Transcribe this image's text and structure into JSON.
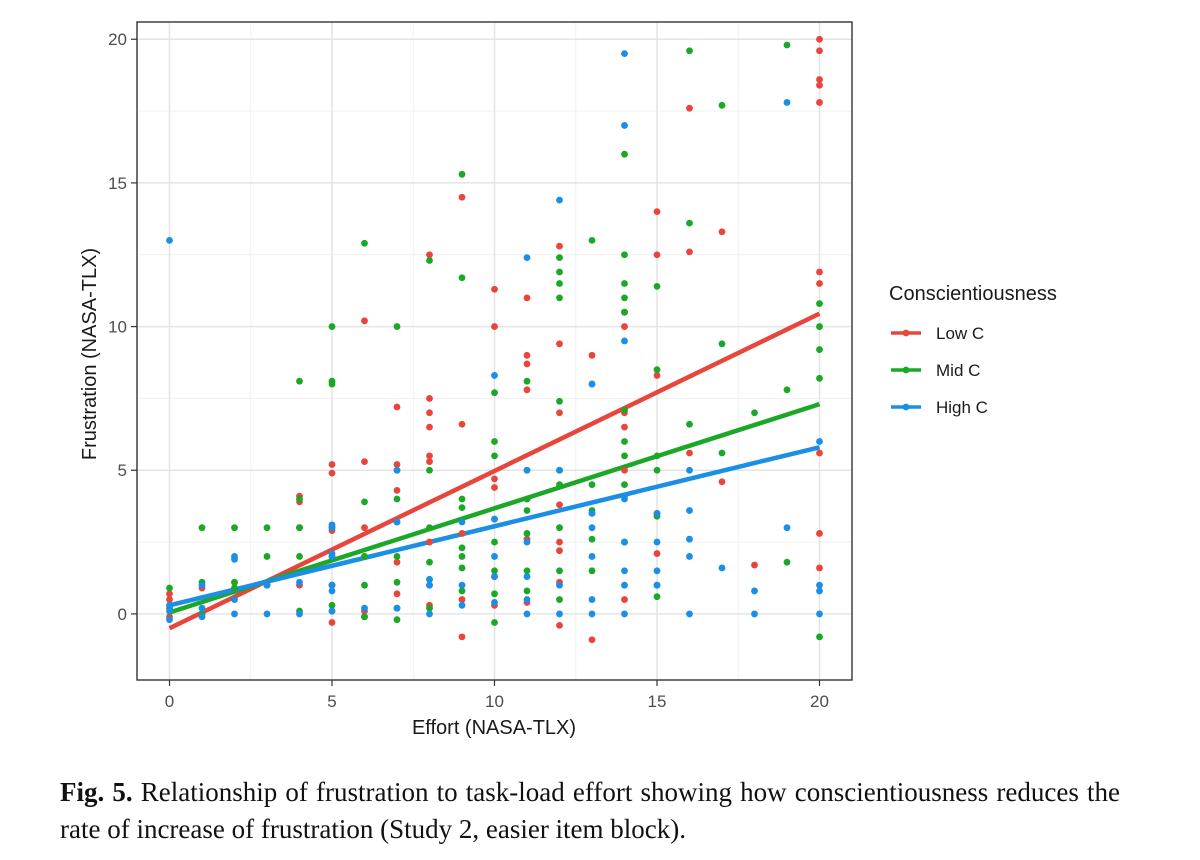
{
  "chart_data": {
    "type": "scatter",
    "title": "",
    "xlabel": "Effort (NASA-TLX)",
    "ylabel": "Frustration (NASA-TLX)",
    "xlim": [
      -1,
      21
    ],
    "ylim": [
      -2.3,
      20.6
    ],
    "x_ticks": [
      0,
      5,
      10,
      15,
      20
    ],
    "y_ticks": [
      0,
      5,
      10,
      15,
      20
    ],
    "x_minor_ticks": [
      2.5,
      7.5,
      12.5,
      17.5
    ],
    "y_minor_ticks": [
      2.5,
      7.5,
      12.5,
      17.5
    ],
    "grid": true,
    "legend": {
      "title": "Conscientiousness",
      "position": "right",
      "entries": [
        "Low C",
        "Mid C",
        "High C"
      ]
    },
    "series": [
      {
        "name": "Low C",
        "color": "#e8453c",
        "fit_line": {
          "x": [
            0,
            20
          ],
          "y": [
            -0.5,
            10.45
          ]
        },
        "points": [
          [
            0,
            0.7
          ],
          [
            0,
            0.5
          ],
          [
            0,
            -0.1
          ],
          [
            1,
            0
          ],
          [
            1,
            0.9
          ],
          [
            2,
            1.1
          ],
          [
            2,
            0.9
          ],
          [
            3,
            1
          ],
          [
            4,
            4.1
          ],
          [
            4,
            3.9
          ],
          [
            4,
            3
          ],
          [
            4,
            1
          ],
          [
            5,
            5.2
          ],
          [
            5,
            4.9
          ],
          [
            5,
            2.9
          ],
          [
            5,
            1
          ],
          [
            5,
            0.1
          ],
          [
            5,
            -0.3
          ],
          [
            6,
            10.2
          ],
          [
            6,
            5.3
          ],
          [
            6,
            3
          ],
          [
            6,
            2
          ],
          [
            6,
            0.1
          ],
          [
            6,
            -0.1
          ],
          [
            7,
            7.2
          ],
          [
            7,
            5.2
          ],
          [
            7,
            4.3
          ],
          [
            7,
            1.8
          ],
          [
            7,
            0.7
          ],
          [
            8,
            12.5
          ],
          [
            8,
            7.5
          ],
          [
            8,
            7
          ],
          [
            8,
            6.5
          ],
          [
            8,
            5.5
          ],
          [
            8,
            5.3
          ],
          [
            8,
            2.5
          ],
          [
            8,
            1
          ],
          [
            8,
            0.3
          ],
          [
            9,
            14.5
          ],
          [
            9,
            6.6
          ],
          [
            9,
            2.8
          ],
          [
            9,
            0.5
          ],
          [
            9,
            -0.8
          ],
          [
            10,
            11.3
          ],
          [
            10,
            10
          ],
          [
            10,
            4.7
          ],
          [
            10,
            4.4
          ],
          [
            10,
            1.3
          ],
          [
            10,
            0.3
          ],
          [
            11,
            11
          ],
          [
            11,
            9
          ],
          [
            11,
            8.7
          ],
          [
            11,
            7.8
          ],
          [
            11,
            4
          ],
          [
            11,
            2.6
          ],
          [
            11,
            0.4
          ],
          [
            12,
            12.8
          ],
          [
            12,
            9.4
          ],
          [
            12,
            7
          ],
          [
            12,
            3.8
          ],
          [
            12,
            2.5
          ],
          [
            12,
            2.2
          ],
          [
            12,
            1.1
          ],
          [
            12,
            -0.4
          ],
          [
            13,
            9
          ],
          [
            13,
            8
          ],
          [
            13,
            3.5
          ],
          [
            13,
            -0.9
          ],
          [
            14,
            10.5
          ],
          [
            14,
            10
          ],
          [
            14,
            7
          ],
          [
            14,
            6.5
          ],
          [
            14,
            5
          ],
          [
            14,
            0.5
          ],
          [
            15,
            14
          ],
          [
            15,
            12.5
          ],
          [
            15,
            8.3
          ],
          [
            15,
            3.5
          ],
          [
            15,
            2.1
          ],
          [
            16,
            17.6
          ],
          [
            16,
            12.6
          ],
          [
            16,
            5.6
          ],
          [
            17,
            13.3
          ],
          [
            17,
            4.6
          ],
          [
            18,
            1.7
          ],
          [
            20,
            20
          ],
          [
            20,
            19.6
          ],
          [
            20,
            18.6
          ],
          [
            20,
            18.4
          ],
          [
            20,
            17.8
          ],
          [
            20,
            11.9
          ],
          [
            20,
            11.5
          ],
          [
            20,
            5.6
          ],
          [
            20,
            2.8
          ],
          [
            20,
            1.6
          ]
        ]
      },
      {
        "name": "Mid C",
        "color": "#1aa826",
        "fit_line": {
          "x": [
            0,
            20
          ],
          "y": [
            0.05,
            7.3
          ]
        },
        "points": [
          [
            0,
            0.9
          ],
          [
            0,
            0.2
          ],
          [
            1,
            3
          ],
          [
            1,
            1.1
          ],
          [
            1,
            0
          ],
          [
            2,
            3
          ],
          [
            2,
            1.1
          ],
          [
            2,
            0.9
          ],
          [
            3,
            3
          ],
          [
            3,
            2
          ],
          [
            3,
            1
          ],
          [
            4,
            8.1
          ],
          [
            4,
            4
          ],
          [
            4,
            3
          ],
          [
            4,
            2
          ],
          [
            4,
            0.1
          ],
          [
            5,
            10
          ],
          [
            5,
            8.1
          ],
          [
            5,
            8
          ],
          [
            5,
            3
          ],
          [
            5,
            2
          ],
          [
            5,
            1
          ],
          [
            5,
            0.3
          ],
          [
            6,
            12.9
          ],
          [
            6,
            3.9
          ],
          [
            6,
            2
          ],
          [
            6,
            1
          ],
          [
            6,
            -0.1
          ],
          [
            7,
            10
          ],
          [
            7,
            5
          ],
          [
            7,
            4
          ],
          [
            7,
            3.2
          ],
          [
            7,
            2
          ],
          [
            7,
            1.1
          ],
          [
            7,
            0.2
          ],
          [
            7,
            -0.2
          ],
          [
            8,
            12.3
          ],
          [
            8,
            5
          ],
          [
            8,
            3
          ],
          [
            8,
            1.8
          ],
          [
            8,
            1.2
          ],
          [
            8,
            0.2
          ],
          [
            9,
            15.3
          ],
          [
            9,
            11.7
          ],
          [
            9,
            4
          ],
          [
            9,
            3.7
          ],
          [
            9,
            2.3
          ],
          [
            9,
            2
          ],
          [
            9,
            1.6
          ],
          [
            9,
            0.8
          ],
          [
            10,
            7.7
          ],
          [
            10,
            6
          ],
          [
            10,
            5.5
          ],
          [
            10,
            3.3
          ],
          [
            10,
            2.5
          ],
          [
            10,
            1.5
          ],
          [
            10,
            0.7
          ],
          [
            10,
            -0.3
          ],
          [
            11,
            8.1
          ],
          [
            11,
            5
          ],
          [
            11,
            4
          ],
          [
            11,
            3.6
          ],
          [
            11,
            2.8
          ],
          [
            11,
            1.5
          ],
          [
            11,
            0.8
          ],
          [
            12,
            12.4
          ],
          [
            12,
            11.9
          ],
          [
            12,
            11.5
          ],
          [
            12,
            11
          ],
          [
            12,
            7.4
          ],
          [
            12,
            5
          ],
          [
            12,
            4.5
          ],
          [
            12,
            3
          ],
          [
            12,
            1.5
          ],
          [
            12,
            0.5
          ],
          [
            13,
            13
          ],
          [
            13,
            4.5
          ],
          [
            13,
            3.6
          ],
          [
            13,
            2.6
          ],
          [
            13,
            1.5
          ],
          [
            14,
            16
          ],
          [
            14,
            12.5
          ],
          [
            14,
            11.5
          ],
          [
            14,
            11
          ],
          [
            14,
            10.5
          ],
          [
            14,
            7.1
          ],
          [
            14,
            6
          ],
          [
            14,
            5.5
          ],
          [
            14,
            4.5
          ],
          [
            14,
            2.5
          ],
          [
            15,
            11.4
          ],
          [
            15,
            8.5
          ],
          [
            15,
            5.5
          ],
          [
            15,
            5
          ],
          [
            15,
            3.4
          ],
          [
            15,
            1
          ],
          [
            15,
            0.6
          ],
          [
            16,
            19.6
          ],
          [
            16,
            13.6
          ],
          [
            16,
            6.6
          ],
          [
            17,
            17.7
          ],
          [
            17,
            9.4
          ],
          [
            17,
            5.6
          ],
          [
            18,
            7
          ],
          [
            19,
            19.8
          ],
          [
            19,
            7.8
          ],
          [
            19,
            1.8
          ],
          [
            20,
            10.8
          ],
          [
            20,
            10
          ],
          [
            20,
            9.2
          ],
          [
            20,
            8.2
          ],
          [
            20,
            -0.8
          ]
        ]
      },
      {
        "name": "High C",
        "color": "#1b8ee6",
        "fit_line": {
          "x": [
            0,
            20
          ],
          "y": [
            0.3,
            5.8
          ]
        },
        "points": [
          [
            0,
            13
          ],
          [
            0,
            0.3
          ],
          [
            0,
            0.1
          ],
          [
            0,
            -0.2
          ],
          [
            1,
            1
          ],
          [
            1,
            0.2
          ],
          [
            1,
            -0.1
          ],
          [
            2,
            2
          ],
          [
            2,
            1.9
          ],
          [
            2,
            0.5
          ],
          [
            2,
            0
          ],
          [
            3,
            1
          ],
          [
            3,
            0
          ],
          [
            4,
            1.1
          ],
          [
            4,
            0
          ],
          [
            5,
            3.1
          ],
          [
            5,
            3
          ],
          [
            5,
            2.1
          ],
          [
            5,
            2
          ],
          [
            5,
            1
          ],
          [
            5,
            0.8
          ],
          [
            5,
            0.1
          ],
          [
            6,
            0.2
          ],
          [
            7,
            5
          ],
          [
            7,
            3.2
          ],
          [
            7,
            0.2
          ],
          [
            8,
            1.2
          ],
          [
            8,
            1
          ],
          [
            8,
            0
          ],
          [
            9,
            3.2
          ],
          [
            9,
            1
          ],
          [
            9,
            0.3
          ],
          [
            10,
            8.3
          ],
          [
            10,
            3.3
          ],
          [
            10,
            2
          ],
          [
            10,
            1.3
          ],
          [
            10,
            0.4
          ],
          [
            11,
            12.4
          ],
          [
            11,
            5
          ],
          [
            11,
            2.5
          ],
          [
            11,
            1.3
          ],
          [
            11,
            0.5
          ],
          [
            11,
            0
          ],
          [
            12,
            14.4
          ],
          [
            12,
            5
          ],
          [
            12,
            1
          ],
          [
            12,
            0
          ],
          [
            13,
            8
          ],
          [
            13,
            3.5
          ],
          [
            13,
            3
          ],
          [
            13,
            2
          ],
          [
            13,
            0.5
          ],
          [
            13,
            0
          ],
          [
            14,
            19.5
          ],
          [
            14,
            17
          ],
          [
            14,
            9.5
          ],
          [
            14,
            4.1
          ],
          [
            14,
            4
          ],
          [
            14,
            2.5
          ],
          [
            14,
            1.5
          ],
          [
            14,
            1
          ],
          [
            14,
            0
          ],
          [
            15,
            3.5
          ],
          [
            15,
            2.5
          ],
          [
            15,
            1.5
          ],
          [
            15,
            1
          ],
          [
            16,
            5
          ],
          [
            16,
            3.6
          ],
          [
            16,
            2.6
          ],
          [
            16,
            2
          ],
          [
            16,
            0
          ],
          [
            17,
            1.6
          ],
          [
            18,
            0.8
          ],
          [
            18,
            0
          ],
          [
            19,
            17.8
          ],
          [
            19,
            3
          ],
          [
            20,
            6
          ],
          [
            20,
            1
          ],
          [
            20,
            0.8
          ],
          [
            20,
            0
          ]
        ]
      }
    ]
  },
  "caption": {
    "label": "Fig. 5.",
    "text": "Relationship of frustration to task-load effort showing how conscien­tiousness reduces the rate of increase of frustration (Study 2, easier item block)."
  }
}
